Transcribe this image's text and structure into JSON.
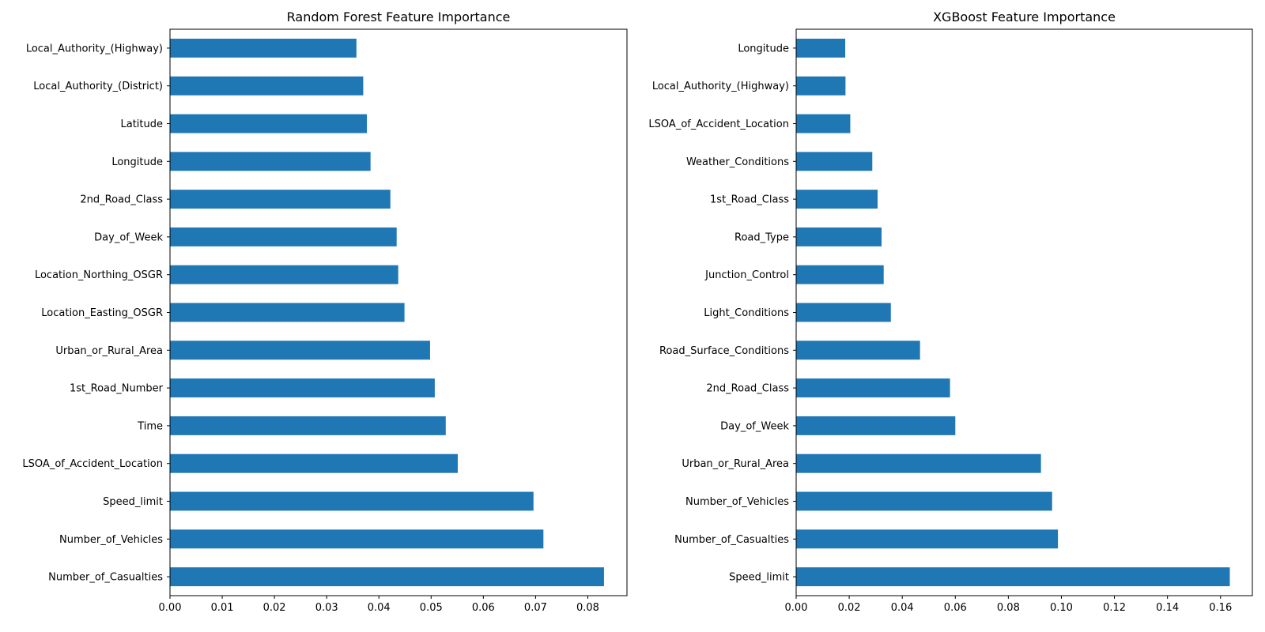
{
  "chart_data": [
    {
      "type": "bar",
      "orientation": "horizontal",
      "title": "Random Forest Feature Importance",
      "xlabel": "",
      "ylabel": "",
      "xlim": [
        0,
        0.0875
      ],
      "xticks": [
        "0.00",
        "0.01",
        "0.02",
        "0.03",
        "0.04",
        "0.05",
        "0.06",
        "0.07",
        "0.08"
      ],
      "categories": [
        "Local_Authority_(Highway)",
        "Local_Authority_(District)",
        "Latitude",
        "Longitude",
        "2nd_Road_Class",
        "Day_of_Week",
        "Location_Northing_OSGR",
        "Location_Easting_OSGR",
        "Urban_or_Rural_Area",
        "1st_Road_Number",
        "Time",
        "LSOA_of_Accident_Location",
        "Speed_limit",
        "Number_of_Vehicles",
        "Number_of_Casualties"
      ],
      "values": [
        0.0357,
        0.037,
        0.0377,
        0.0384,
        0.0422,
        0.0434,
        0.0437,
        0.0449,
        0.0498,
        0.0507,
        0.0528,
        0.0551,
        0.0696,
        0.0715,
        0.0831
      ],
      "grid": false,
      "legend": "none",
      "colors": {
        "bar": "#1f77b4"
      }
    },
    {
      "type": "bar",
      "orientation": "horizontal",
      "title": "XGBoost Feature Importance",
      "xlabel": "",
      "ylabel": "",
      "xlim": [
        0,
        0.172
      ],
      "xticks": [
        "0.00",
        "0.02",
        "0.04",
        "0.06",
        "0.08",
        "0.10",
        "0.12",
        "0.14",
        "0.16"
      ],
      "categories": [
        "Longitude",
        "Local_Authority_(Highway)",
        "LSOA_of_Accident_Location",
        "Weather_Conditions",
        "1st_Road_Class",
        "Road_Type",
        "Junction_Control",
        "Light_Conditions",
        "Road_Surface_Conditions",
        "2nd_Road_Class",
        "Day_of_Week",
        "Urban_or_Rural_Area",
        "Number_of_Vehicles",
        "Number_of_Casualties",
        "Speed_limit"
      ],
      "values": [
        0.0185,
        0.0186,
        0.0204,
        0.0287,
        0.0307,
        0.0322,
        0.033,
        0.0357,
        0.0467,
        0.058,
        0.06,
        0.0923,
        0.0965,
        0.0987,
        0.1635
      ],
      "grid": false,
      "legend": "none",
      "colors": {
        "bar": "#1f77b4"
      }
    }
  ]
}
